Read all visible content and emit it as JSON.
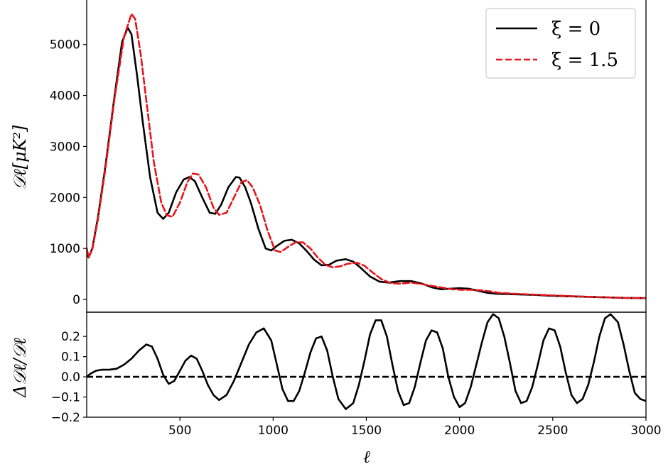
{
  "chart_data": [
    {
      "panel": "top",
      "type": "line",
      "xlim": [
        0,
        3000
      ],
      "ylim": [
        -250,
        5900
      ],
      "xlabel": "",
      "ylabel": "𝒟ℓ[μK²]",
      "yticks": [
        0,
        1000,
        2000,
        3000,
        4000,
        5000
      ],
      "yticklabels": [
        "0",
        "1000",
        "2000",
        "3000",
        "4000",
        "5000"
      ],
      "legend": {
        "placement": "top-right",
        "entries": [
          "ξ = 0",
          "ξ = 1.5"
        ]
      },
      "series": [
        {
          "name": "ξ = 0",
          "color": "#000000",
          "style": "solid",
          "x": [
            0,
            10,
            30,
            60,
            100,
            150,
            190,
            220,
            240,
            270,
            300,
            340,
            380,
            410,
            440,
            480,
            520,
            550,
            580,
            620,
            660,
            690,
            720,
            760,
            800,
            820,
            850,
            880,
            920,
            960,
            990,
            1020,
            1060,
            1100,
            1140,
            1180,
            1220,
            1260,
            1300,
            1340,
            1390,
            1430,
            1470,
            1520,
            1570,
            1620,
            1680,
            1740,
            1800,
            1850,
            1900,
            1950,
            2000,
            2050,
            2100,
            2150,
            2200,
            2300,
            2400,
            2500,
            2600,
            2700,
            2800,
            2900,
            3000
          ],
          "y": [
            1000,
            820,
            1000,
            1600,
            2600,
            4000,
            5050,
            5330,
            5200,
            4400,
            3500,
            2400,
            1700,
            1580,
            1700,
            2100,
            2350,
            2400,
            2320,
            2000,
            1700,
            1680,
            1850,
            2200,
            2400,
            2390,
            2200,
            1900,
            1400,
            1000,
            960,
            1050,
            1150,
            1170,
            1100,
            950,
            780,
            670,
            680,
            760,
            790,
            740,
            620,
            450,
            350,
            330,
            360,
            360,
            310,
            240,
            200,
            210,
            220,
            210,
            170,
            130,
            110,
            100,
            90,
            70,
            60,
            50,
            40,
            30,
            25
          ]
        },
        {
          "name": "ξ = 1.5",
          "color": "#e8141b",
          "style": "dashed",
          "x": [
            0,
            10,
            30,
            60,
            100,
            150,
            200,
            240,
            260,
            290,
            320,
            360,
            400,
            430,
            460,
            500,
            540,
            570,
            600,
            640,
            680,
            710,
            750,
            790,
            830,
            860,
            890,
            930,
            970,
            1010,
            1040,
            1080,
            1120,
            1160,
            1200,
            1240,
            1280,
            1320,
            1360,
            1400,
            1450,
            1490,
            1530,
            1580,
            1630,
            1680,
            1740,
            1800,
            1860,
            1910,
            1960,
            2010,
            2060,
            2110,
            2160,
            2210,
            2300,
            2400,
            2500,
            2600,
            2700,
            2800,
            2900,
            3000
          ],
          "y": [
            1000,
            820,
            980,
            1560,
            2550,
            3950,
            5150,
            5600,
            5500,
            4800,
            3900,
            2700,
            1900,
            1650,
            1620,
            1900,
            2300,
            2470,
            2450,
            2200,
            1800,
            1660,
            1700,
            2000,
            2300,
            2340,
            2200,
            1850,
            1350,
            960,
            930,
            1030,
            1120,
            1120,
            1000,
            820,
            680,
            630,
            650,
            700,
            720,
            660,
            540,
            400,
            320,
            310,
            330,
            300,
            260,
            230,
            200,
            190,
            190,
            180,
            160,
            130,
            110,
            95,
            80,
            65,
            50,
            40,
            30,
            25
          ]
        }
      ]
    },
    {
      "panel": "bottom",
      "type": "line",
      "xlim": [
        0,
        3000
      ],
      "ylim": [
        -0.2,
        0.32
      ],
      "xlabel": "ℓ",
      "ylabel": "Δ𝒟ℓ/𝒟ℓ",
      "xticks": [
        500,
        1000,
        1500,
        2000,
        2500,
        3000
      ],
      "xticklabels": [
        "500",
        "1000",
        "1500",
        "2000",
        "2500",
        "3000"
      ],
      "yticks": [
        -0.2,
        -0.1,
        0.0,
        0.1,
        0.2
      ],
      "yticklabels": [
        "−0.2",
        "−0.1",
        "0.0",
        "0.1",
        "0.2"
      ],
      "reference_line": {
        "y": 0,
        "style": "dashed",
        "color": "#000000"
      },
      "series": [
        {
          "color": "#000000",
          "style": "solid",
          "x": [
            0,
            20,
            50,
            80,
            120,
            160,
            200,
            240,
            280,
            320,
            350,
            380,
            410,
            440,
            470,
            500,
            530,
            560,
            590,
            620,
            650,
            680,
            710,
            750,
            790,
            830,
            870,
            910,
            950,
            990,
            1020,
            1050,
            1080,
            1110,
            1140,
            1170,
            1200,
            1230,
            1260,
            1290,
            1320,
            1350,
            1390,
            1430,
            1460,
            1490,
            1520,
            1550,
            1580,
            1610,
            1640,
            1670,
            1700,
            1730,
            1760,
            1790,
            1820,
            1850,
            1880,
            1910,
            1940,
            1970,
            2000,
            2030,
            2060,
            2090,
            2120,
            2150,
            2180,
            2210,
            2240,
            2270,
            2300,
            2330,
            2360,
            2390,
            2420,
            2450,
            2480,
            2510,
            2540,
            2570,
            2600,
            2630,
            2660,
            2690,
            2720,
            2750,
            2780,
            2810,
            2850,
            2880,
            2910,
            2940,
            2970,
            3000
          ],
          "y": [
            0,
            0.015,
            0.03,
            0.035,
            0.035,
            0.04,
            0.06,
            0.09,
            0.13,
            0.16,
            0.15,
            0.09,
            0.01,
            -0.035,
            -0.02,
            0.03,
            0.08,
            0.105,
            0.09,
            0.03,
            -0.04,
            -0.09,
            -0.115,
            -0.09,
            -0.02,
            0.07,
            0.16,
            0.22,
            0.24,
            0.18,
            0.06,
            -0.06,
            -0.12,
            -0.12,
            -0.07,
            0.02,
            0.12,
            0.19,
            0.2,
            0.13,
            0.0,
            -0.11,
            -0.16,
            -0.13,
            -0.04,
            0.08,
            0.21,
            0.28,
            0.28,
            0.2,
            0.06,
            -0.07,
            -0.14,
            -0.13,
            -0.05,
            0.07,
            0.18,
            0.23,
            0.22,
            0.14,
            0.0,
            -0.1,
            -0.15,
            -0.13,
            -0.05,
            0.06,
            0.17,
            0.27,
            0.31,
            0.29,
            0.2,
            0.07,
            -0.07,
            -0.13,
            -0.12,
            -0.05,
            0.06,
            0.18,
            0.24,
            0.23,
            0.15,
            0.02,
            -0.09,
            -0.13,
            -0.11,
            -0.04,
            0.07,
            0.2,
            0.29,
            0.31,
            0.27,
            0.16,
            0.03,
            -0.08,
            -0.11,
            -0.12
          ]
        }
      ]
    }
  ]
}
